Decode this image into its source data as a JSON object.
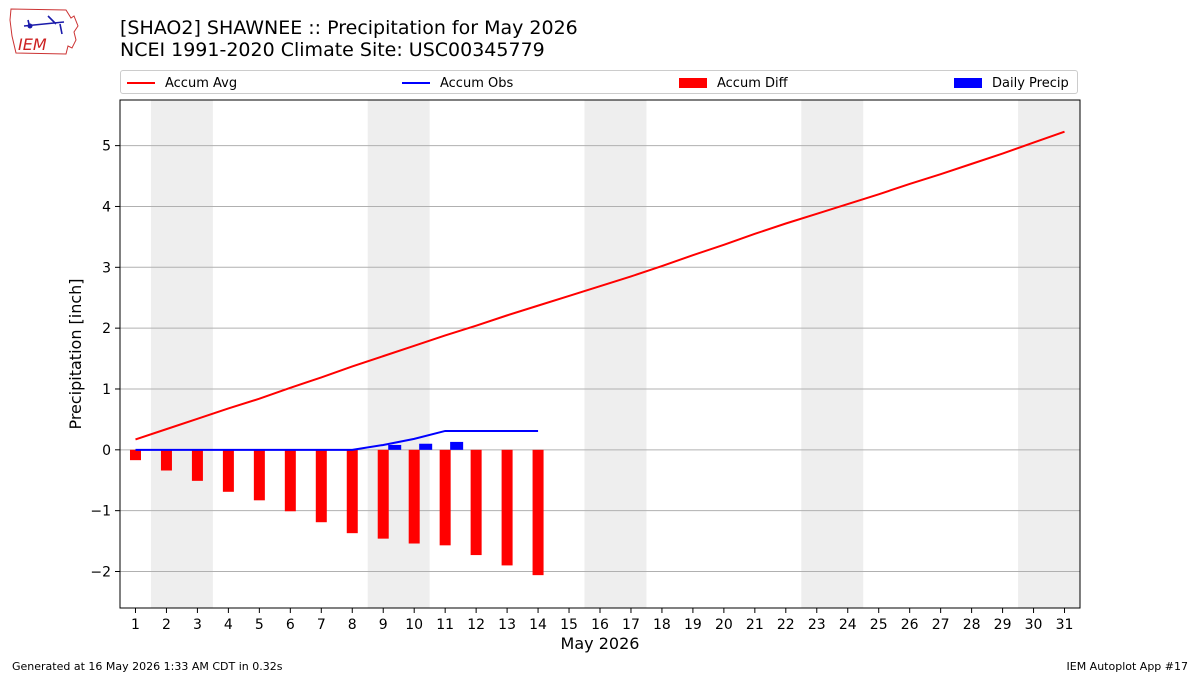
{
  "title_line1": "[SHAO2] SHAWNEE :: Precipitation for May 2026",
  "title_line2": "NCEI 1991-2020 Climate Site: USC00345779",
  "logo_text": "IEM",
  "footer_left": "Generated at 16 May 2026 1:33 AM CDT in 0.32s",
  "footer_right": "IEM Autoplot App #17",
  "colors": {
    "avg": "#ff0000",
    "obs": "#0000ff",
    "diff": "#ff0000",
    "daily": "#0000ff",
    "weekend_shade": "#eeeeee",
    "grid": "#b0b0b0"
  },
  "legend": [
    {
      "label": "Accum Avg",
      "kind": "line",
      "color": "#ff0000"
    },
    {
      "label": "Accum Obs",
      "kind": "line",
      "color": "#0000ff"
    },
    {
      "label": "Accum Diff",
      "kind": "box",
      "color": "#ff0000"
    },
    {
      "label": "Daily Precip",
      "kind": "box",
      "color": "#0000ff"
    }
  ],
  "chart_data": {
    "type": "bar",
    "xlabel": "May 2026",
    "ylabel": "Precipitation [inch]",
    "xlim": [
      0.5,
      31.5
    ],
    "ylim": [
      -2.6,
      5.75
    ],
    "yticks": [
      -2,
      -1,
      0,
      1,
      2,
      3,
      4,
      5
    ],
    "ytick_labels": [
      "−2",
      "−1",
      "0",
      "1",
      "2",
      "3",
      "4",
      "5"
    ],
    "x": [
      1,
      2,
      3,
      4,
      5,
      6,
      7,
      8,
      9,
      10,
      11,
      12,
      13,
      14,
      15,
      16,
      17,
      18,
      19,
      20,
      21,
      22,
      23,
      24,
      25,
      26,
      27,
      28,
      29,
      30,
      31
    ],
    "grid": "horizontal",
    "legend_position": "top",
    "shaded_days": [
      [
        2,
        3
      ],
      [
        9,
        10
      ],
      [
        16,
        17
      ],
      [
        23,
        24
      ],
      [
        30,
        31
      ]
    ],
    "series": [
      {
        "name": "Accum Avg",
        "kind": "line",
        "x": [
          1,
          2,
          3,
          4,
          5,
          6,
          7,
          8,
          9,
          10,
          11,
          12,
          13,
          14,
          15,
          16,
          17,
          18,
          19,
          20,
          21,
          22,
          23,
          24,
          25,
          26,
          27,
          28,
          29,
          30,
          31
        ],
        "values": [
          0.17,
          0.34,
          0.51,
          0.68,
          0.84,
          1.02,
          1.19,
          1.37,
          1.54,
          1.71,
          1.88,
          2.04,
          2.21,
          2.37,
          2.53,
          2.69,
          2.85,
          3.02,
          3.2,
          3.37,
          3.55,
          3.72,
          3.88,
          4.04,
          4.2,
          4.37,
          4.53,
          4.7,
          4.87,
          5.05,
          5.23
        ]
      },
      {
        "name": "Accum Obs",
        "kind": "line",
        "x": [
          1,
          2,
          3,
          4,
          5,
          6,
          7,
          8,
          9,
          10,
          11,
          12,
          13,
          14
        ],
        "values": [
          0,
          0,
          0,
          0,
          0,
          0,
          0,
          0,
          0.08,
          0.18,
          0.31,
          0.31,
          0.31,
          0.31
        ]
      },
      {
        "name": "Accum Diff",
        "kind": "bar",
        "x": [
          1,
          2,
          3,
          4,
          5,
          6,
          7,
          8,
          9,
          10,
          11,
          12,
          13,
          14
        ],
        "values": [
          -0.17,
          -0.34,
          -0.51,
          -0.69,
          -0.83,
          -1.01,
          -1.19,
          -1.37,
          -1.46,
          -1.54,
          -1.57,
          -1.73,
          -1.9,
          -2.06
        ]
      },
      {
        "name": "Daily Precip",
        "kind": "bar",
        "x": [
          9,
          10,
          11
        ],
        "values": [
          0.08,
          0.1,
          0.13
        ]
      }
    ]
  }
}
